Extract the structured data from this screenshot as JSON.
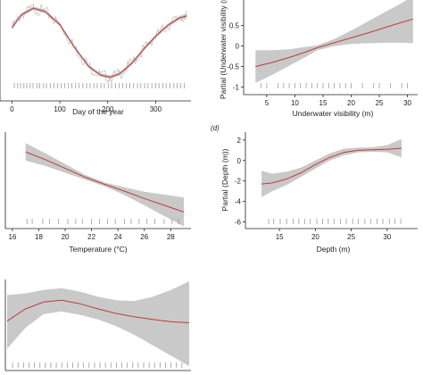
{
  "colors": {
    "ci_band": "#c9c9c9",
    "fit_line": "#c23a3a",
    "axis": "#222222",
    "rug": "#9a9a9a",
    "raw": "#b5b5b5"
  },
  "chart_data": [
    {
      "panel": "top-left",
      "type": "line",
      "xlabel": "Day of the year",
      "ylabel": "",
      "x_ticks": [
        0,
        100,
        200,
        300
      ],
      "y_ticks": [],
      "xlim": [
        -10,
        370
      ],
      "ylim": [
        -1.15,
        1.15
      ],
      "grid": false,
      "series": [
        {
          "values_x": [
            0,
            20,
            45,
            70,
            100,
            130,
            160,
            185,
            205,
            225,
            250,
            275,
            300,
            325,
            350,
            365
          ],
          "fit": [
            0.55,
            0.85,
            1.0,
            0.92,
            0.62,
            0.1,
            -0.35,
            -0.55,
            -0.6,
            -0.52,
            -0.28,
            0.05,
            0.35,
            0.6,
            0.78,
            0.82
          ],
          "lower": [
            0.5,
            0.81,
            0.96,
            0.88,
            0.58,
            0.06,
            -0.39,
            -0.59,
            -0.64,
            -0.56,
            -0.32,
            0.01,
            0.31,
            0.56,
            0.74,
            0.76
          ],
          "upper": [
            0.6,
            0.89,
            1.04,
            0.96,
            0.66,
            0.14,
            -0.31,
            -0.51,
            -0.56,
            -0.48,
            -0.24,
            0.09,
            0.39,
            0.64,
            0.82,
            0.88
          ]
        }
      ],
      "rug": [
        5,
        12,
        18,
        25,
        31,
        38,
        44,
        52,
        58,
        66,
        72,
        80,
        88,
        95,
        103,
        110,
        118,
        125,
        133,
        140,
        148,
        156,
        163,
        171,
        178,
        186,
        193,
        201,
        208,
        216,
        224,
        231,
        239,
        246,
        254,
        262,
        269,
        277,
        284,
        292,
        300,
        307,
        315,
        322,
        330,
        338,
        345,
        352,
        360
      ]
    },
    {
      "panel": "top-right",
      "type": "line",
      "xlabel": "Underwater visibility (m)",
      "ylabel": "Partial (Underwater visibility (m",
      "x_ticks": [
        5,
        10,
        15,
        20,
        25,
        30
      ],
      "y_ticks": [
        -1.0,
        -0.5,
        0.0,
        0.5
      ],
      "xlim": [
        2,
        31.5
      ],
      "ylim": [
        -1.12,
        1.08
      ],
      "grid": false,
      "series": [
        {
          "values_x": [
            3,
            6,
            9,
            12,
            14,
            17,
            20,
            23,
            26,
            29,
            31
          ],
          "fit": [
            -0.5,
            -0.4,
            -0.28,
            -0.14,
            -0.04,
            0.08,
            0.2,
            0.32,
            0.45,
            0.58,
            0.66
          ],
          "lower": [
            -0.9,
            -0.7,
            -0.48,
            -0.26,
            -0.1,
            0.0,
            0.05,
            0.07,
            0.08,
            0.08,
            0.07
          ],
          "upper": [
            -0.1,
            -0.1,
            -0.08,
            -0.02,
            0.02,
            0.17,
            0.38,
            0.6,
            0.83,
            1.05,
            1.22
          ]
        }
      ],
      "rug": [
        4,
        5,
        7,
        8,
        9,
        10,
        11,
        12,
        13,
        14,
        15,
        16,
        17,
        18,
        19,
        20,
        22,
        24,
        25,
        27,
        29,
        30
      ]
    },
    {
      "panel": "middle-left",
      "type": "line",
      "xlabel": "Temperature (°C)",
      "ylabel": "",
      "x_ticks": [
        16,
        18,
        20,
        22,
        24,
        26,
        28
      ],
      "y_ticks": [],
      "xlim": [
        15.6,
        29.4
      ],
      "ylim": [
        -1.1,
        0.85
      ],
      "grid": false,
      "series": [
        {
          "values_x": [
            17,
            18.5,
            20,
            21.5,
            23,
            24.5,
            26,
            27.5,
            29
          ],
          "fit": [
            0.48,
            0.32,
            0.14,
            -0.04,
            -0.19,
            -0.33,
            -0.48,
            -0.62,
            -0.76
          ],
          "lower": [
            0.3,
            0.19,
            0.05,
            -0.09,
            -0.23,
            -0.41,
            -0.62,
            -0.84,
            -1.06
          ],
          "upper": [
            0.66,
            0.45,
            0.23,
            0.01,
            -0.15,
            -0.25,
            -0.34,
            -0.4,
            -0.46
          ]
        }
      ],
      "rug": [
        17.1,
        17.5,
        18.3,
        18.8,
        19.5,
        20.2,
        20.8,
        21.3,
        22.0,
        22.6,
        23.2,
        23.8,
        24.5,
        25.0,
        25.6,
        26.2,
        26.8,
        27.5,
        28.1,
        28.6
      ]
    },
    {
      "panel": "middle-right",
      "panel_label": "(d)",
      "type": "line",
      "xlabel": "Depth (m)",
      "ylabel": "Partial (Depth (m))",
      "x_ticks": [
        15,
        20,
        25,
        30
      ],
      "y_ticks": [
        -6,
        -4,
        -2,
        0,
        2
      ],
      "xlim": [
        11,
        34
      ],
      "ylim": [
        -6.4,
        2.6
      ],
      "grid": false,
      "series": [
        {
          "values_x": [
            12.5,
            14,
            16,
            18,
            20,
            22,
            24,
            26,
            28,
            30,
            32
          ],
          "fit": [
            -2.3,
            -2.2,
            -1.8,
            -1.2,
            -0.4,
            0.3,
            0.8,
            1.0,
            1.05,
            1.1,
            1.2
          ],
          "lower": [
            -3.6,
            -3.0,
            -2.4,
            -1.6,
            -0.8,
            0.0,
            0.5,
            0.8,
            0.85,
            0.8,
            0.3
          ],
          "upper": [
            -1.0,
            -1.3,
            -1.1,
            -0.7,
            0.0,
            0.7,
            1.15,
            1.25,
            1.3,
            1.5,
            2.1
          ]
        }
      ],
      "rug": [
        13.5,
        14.2,
        15.1,
        16.0,
        16.9,
        17.7,
        18.5,
        19.3,
        20.2,
        21.0,
        21.8,
        22.6,
        23.5,
        24.3,
        25.2,
        26.0,
        26.9,
        27.7,
        28.6,
        29.4,
        30.3,
        31.1,
        31.9
      ]
    },
    {
      "panel": "bottom-left",
      "type": "line",
      "xlabel": "",
      "ylabel": "",
      "x_ticks": [],
      "y_ticks": [],
      "xlim": [
        0,
        1
      ],
      "ylim": [
        -1.3,
        1.15
      ],
      "grid": false,
      "series": [
        {
          "values_x": [
            0.0,
            0.1,
            0.2,
            0.3,
            0.4,
            0.5,
            0.6,
            0.7,
            0.8,
            0.9,
            1.0
          ],
          "fit": [
            0.0,
            0.35,
            0.55,
            0.6,
            0.5,
            0.35,
            0.22,
            0.12,
            0.05,
            -0.02,
            -0.05
          ],
          "lower": [
            -0.8,
            -0.2,
            0.2,
            0.28,
            0.18,
            0.05,
            -0.15,
            -0.4,
            -0.7,
            -1.0,
            -1.3
          ],
          "upper": [
            0.75,
            0.8,
            0.9,
            0.95,
            0.85,
            0.7,
            0.6,
            0.58,
            0.7,
            0.9,
            1.15
          ]
        }
      ],
      "rug": [
        0.03,
        0.06,
        0.09,
        0.12,
        0.15,
        0.18,
        0.21,
        0.24,
        0.27,
        0.3,
        0.33,
        0.36,
        0.39,
        0.42,
        0.45,
        0.48,
        0.51,
        0.54,
        0.57,
        0.6,
        0.63,
        0.66,
        0.69,
        0.72,
        0.75,
        0.78,
        0.81,
        0.84,
        0.87,
        0.9,
        0.93,
        0.96
      ]
    }
  ]
}
